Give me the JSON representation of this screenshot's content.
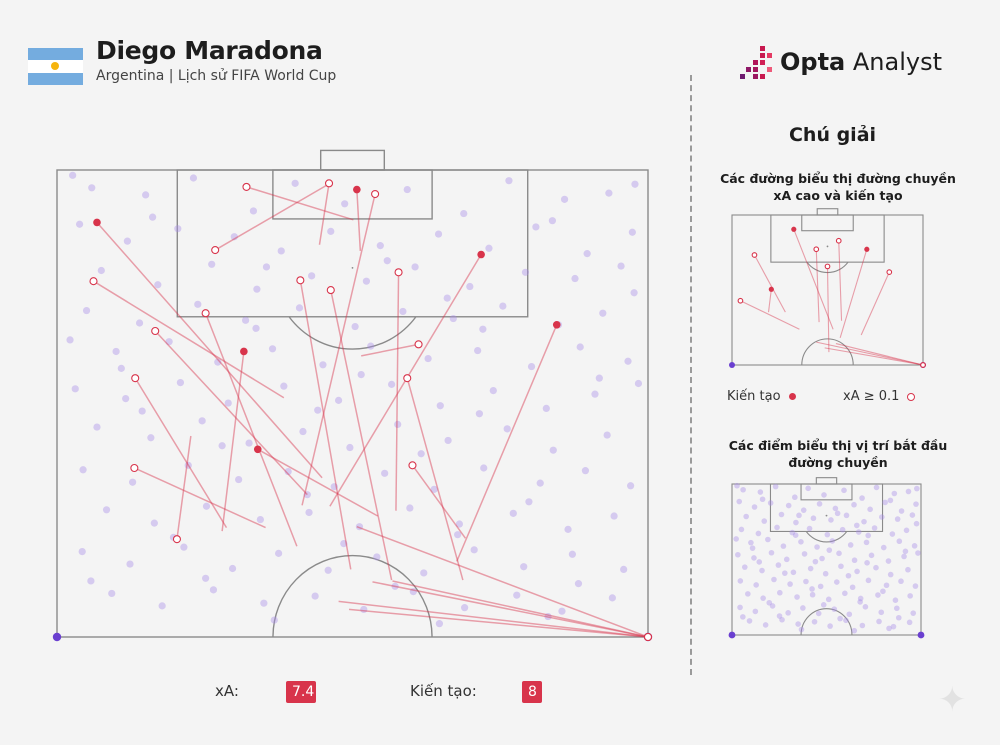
{
  "header": {
    "title": "Diego Maradona",
    "subtitle": "Argentina | Lịch sử FIFA World Cup"
  },
  "logo": {
    "brand_bold": "Opta",
    "brand_light": " Analyst"
  },
  "legend": {
    "title": "Chú giải",
    "lines_caption": "Các đường biểu thị đường chuyền xA cao và kiến tạo",
    "assist_label": "Kiến tạo",
    "xa_label": "xA ≥ 0.1",
    "dots_caption": "Các điểm biểu thị vị trí bắt đầu đường chuyền"
  },
  "stats": {
    "xa_label": "xA:",
    "xa_value": "7.4",
    "assists_label": "Kiến tạo:",
    "assists_value": "8"
  },
  "colors": {
    "assist": "#d8344b",
    "line": "#d8344b",
    "dot": "#a98ee8",
    "corner": "#6a3fd0",
    "pitch": "#8a8a8a",
    "badge": "#d8344b"
  },
  "icons": {
    "flag": "argentina-flag-icon",
    "logo": "opta-logo-icon",
    "sparkle": "sparkle-icon"
  },
  "chart_data": {
    "type": "scatter",
    "title": "Diego Maradona",
    "pitch": {
      "length_m": 52.5,
      "width_m": 68,
      "attacking_end": "top"
    },
    "pass_starts": [
      [
        4.0,
        2.0
      ],
      [
        10.2,
        2.8
      ],
      [
        15.7,
        0.9
      ],
      [
        22.6,
        4.6
      ],
      [
        27.4,
        1.5
      ],
      [
        33.1,
        3.8
      ],
      [
        40.3,
        2.2
      ],
      [
        46.8,
        4.9
      ],
      [
        52.0,
        1.2
      ],
      [
        58.4,
        3.3
      ],
      [
        63.5,
        2.6
      ],
      [
        2.6,
        6.1
      ],
      [
        8.1,
        8.0
      ],
      [
        13.9,
        6.6
      ],
      [
        20.4,
        7.5
      ],
      [
        25.8,
        9.1
      ],
      [
        31.5,
        6.9
      ],
      [
        37.2,
        8.5
      ],
      [
        43.9,
        7.2
      ],
      [
        49.7,
        8.8
      ],
      [
        55.1,
        6.4
      ],
      [
        61.0,
        9.4
      ],
      [
        66.2,
        7.0
      ],
      [
        5.1,
        11.3
      ],
      [
        11.6,
        12.9
      ],
      [
        17.8,
        10.6
      ],
      [
        23.0,
        13.4
      ],
      [
        29.3,
        11.9
      ],
      [
        35.6,
        12.5
      ],
      [
        41.2,
        10.9
      ],
      [
        47.5,
        13.1
      ],
      [
        53.9,
        11.5
      ],
      [
        59.6,
        12.2
      ],
      [
        64.9,
        10.8
      ],
      [
        3.4,
        15.8
      ],
      [
        9.5,
        17.2
      ],
      [
        16.2,
        15.1
      ],
      [
        21.7,
        16.9
      ],
      [
        27.9,
        15.5
      ],
      [
        34.3,
        17.6
      ],
      [
        39.8,
        15.9
      ],
      [
        45.6,
        16.7
      ],
      [
        51.3,
        15.3
      ],
      [
        57.7,
        17.4
      ],
      [
        62.8,
        16.1
      ],
      [
        6.8,
        20.4
      ],
      [
        12.9,
        19.3
      ],
      [
        18.5,
        21.6
      ],
      [
        24.8,
        20.1
      ],
      [
        30.6,
        21.9
      ],
      [
        36.1,
        19.8
      ],
      [
        42.7,
        21.2
      ],
      [
        48.4,
        20.3
      ],
      [
        54.6,
        22.1
      ],
      [
        60.2,
        19.9
      ],
      [
        65.7,
        21.5
      ],
      [
        2.1,
        24.6
      ],
      [
        7.9,
        25.7
      ],
      [
        14.2,
        23.9
      ],
      [
        19.7,
        26.2
      ],
      [
        26.1,
        24.3
      ],
      [
        32.4,
        25.9
      ],
      [
        38.5,
        24.1
      ],
      [
        44.1,
        26.5
      ],
      [
        50.2,
        24.8
      ],
      [
        56.3,
        26.8
      ],
      [
        61.9,
        25.2
      ],
      [
        66.9,
        24.0
      ],
      [
        4.6,
        28.9
      ],
      [
        10.8,
        30.1
      ],
      [
        16.7,
        28.2
      ],
      [
        22.1,
        30.7
      ],
      [
        28.3,
        29.4
      ],
      [
        33.7,
        31.2
      ],
      [
        39.2,
        28.6
      ],
      [
        45.0,
        30.4
      ],
      [
        51.8,
        29.1
      ],
      [
        57.1,
        31.5
      ],
      [
        63.3,
        29.8
      ],
      [
        3.0,
        33.7
      ],
      [
        8.7,
        35.1
      ],
      [
        15.1,
        33.2
      ],
      [
        20.9,
        34.8
      ],
      [
        26.6,
        33.9
      ],
      [
        31.9,
        35.6
      ],
      [
        37.7,
        34.1
      ],
      [
        43.4,
        35.9
      ],
      [
        49.1,
        33.5
      ],
      [
        55.6,
        35.2
      ],
      [
        60.8,
        33.8
      ],
      [
        66.0,
        35.5
      ],
      [
        5.7,
        38.2
      ],
      [
        11.2,
        39.7
      ],
      [
        17.2,
        37.8
      ],
      [
        23.4,
        39.3
      ],
      [
        29.0,
        38.5
      ],
      [
        34.8,
        40.1
      ],
      [
        40.6,
        38.0
      ],
      [
        46.3,
        39.8
      ],
      [
        52.5,
        38.6
      ],
      [
        58.8,
        40.4
      ],
      [
        64.1,
        38.9
      ],
      [
        2.9,
        42.9
      ],
      [
        8.4,
        44.3
      ],
      [
        14.6,
        42.4
      ],
      [
        20.2,
        44.8
      ],
      [
        25.5,
        43.1
      ],
      [
        31.2,
        45.0
      ],
      [
        36.8,
        43.5
      ],
      [
        42.2,
        45.3
      ],
      [
        48.0,
        42.7
      ],
      [
        53.7,
        44.6
      ],
      [
        59.3,
        43.2
      ],
      [
        65.2,
        44.9
      ],
      [
        6.3,
        47.6
      ],
      [
        12.1,
        49.0
      ],
      [
        18.0,
        47.2
      ],
      [
        23.8,
        48.7
      ],
      [
        29.7,
        47.9
      ],
      [
        35.3,
        49.4
      ],
      [
        41.0,
        47.4
      ],
      [
        46.9,
        49.2
      ],
      [
        52.9,
        47.8
      ],
      [
        58.1,
        49.6
      ],
      [
        63.9,
        48.1
      ],
      [
        1.8,
        0.6
      ],
      [
        66.5,
        1.6
      ],
      [
        11.0,
        5.3
      ],
      [
        57.0,
        5.7
      ],
      [
        38.0,
        10.2
      ],
      [
        24.1,
        10.9
      ],
      [
        49.0,
        17.9
      ],
      [
        7.4,
        22.3
      ],
      [
        35.0,
        23.0
      ],
      [
        62.4,
        23.4
      ],
      [
        19.0,
        31.0
      ],
      [
        41.9,
        31.9
      ],
      [
        28.8,
        36.5
      ],
      [
        54.3,
        37.3
      ],
      [
        13.4,
        41.3
      ],
      [
        46.1,
        41.0
      ],
      [
        33.0,
        42.0
      ],
      [
        3.9,
        46.2
      ],
      [
        60.0,
        46.5
      ],
      [
        25.0,
        50.6
      ],
      [
        44.0,
        51.0
      ],
      [
        66.4,
        13.8
      ],
      [
        1.5,
        19.1
      ],
      [
        30.0,
        27.0
      ],
      [
        9.8,
        27.1
      ],
      [
        48.6,
        27.4
      ],
      [
        17.1,
        45.9
      ],
      [
        56.5,
        50.2
      ],
      [
        38.9,
        46.8
      ],
      [
        22.9,
        17.8
      ],
      [
        44.9,
        14.4
      ]
    ],
    "corners": [
      [
        0,
        52.5
      ],
      [
        68,
        52.5
      ]
    ],
    "passes": [
      {
        "start": [
          18.2,
          9.0
        ],
        "end": [
          31.4,
          1.5
        ],
        "type": "xa"
      },
      {
        "start": [
          21.8,
          1.9
        ],
        "end": [
          34.1,
          5.6
        ],
        "type": "xa"
      },
      {
        "start": [
          21.5,
          20.4
        ],
        "end": [
          19.0,
          40.6
        ],
        "type": "assist"
      },
      {
        "start": [
          13.8,
          41.5
        ],
        "end": [
          15.4,
          29.9
        ],
        "type": "xa"
      },
      {
        "start": [
          36.6,
          2.7
        ],
        "end": [
          28.2,
          37.7
        ],
        "type": "xa"
      },
      {
        "start": [
          9.0,
          23.4
        ],
        "end": [
          19.5,
          40.2
        ],
        "type": "xa"
      },
      {
        "start": [
          4.2,
          12.5
        ],
        "end": [
          26.1,
          25.6
        ],
        "type": "xa"
      },
      {
        "start": [
          4.6,
          5.9
        ],
        "end": [
          30.5,
          34.6
        ],
        "type": "assist"
      },
      {
        "start": [
          11.3,
          18.1
        ],
        "end": [
          28.8,
          36.5
        ],
        "type": "xa"
      },
      {
        "start": [
          8.9,
          33.5
        ],
        "end": [
          24.0,
          40.2
        ],
        "type": "xa"
      },
      {
        "start": [
          48.8,
          9.5
        ],
        "end": [
          31.4,
          37.8
        ],
        "type": "assist"
      },
      {
        "start": [
          17.1,
          16.1
        ],
        "end": [
          27.6,
          42.3
        ],
        "type": "xa"
      },
      {
        "start": [
          23.1,
          31.4
        ],
        "end": [
          36.9,
          38.9
        ],
        "type": "assist"
      },
      {
        "start": [
          28.0,
          12.4
        ],
        "end": [
          33.8,
          44.9
        ],
        "type": "xa"
      },
      {
        "start": [
          31.5,
          13.5
        ],
        "end": [
          38.5,
          46.1
        ],
        "type": "xa"
      },
      {
        "start": [
          39.3,
          11.5
        ],
        "end": [
          39.0,
          38.3
        ],
        "type": "xa"
      },
      {
        "start": [
          40.3,
          23.4
        ],
        "end": [
          46.7,
          46.1
        ],
        "type": "xa"
      },
      {
        "start": [
          40.9,
          33.2
        ],
        "end": [
          47.0,
          41.4
        ],
        "type": "xa"
      },
      {
        "start": [
          57.5,
          17.4
        ],
        "end": [
          46.0,
          44.0
        ],
        "type": "assist"
      },
      {
        "start": [
          68,
          52.5
        ],
        "end": [
          33.6,
          49.4
        ],
        "type": "xa"
      },
      {
        "start": [
          68,
          52.5
        ],
        "end": [
          32.4,
          48.5
        ],
        "type": "assist"
      },
      {
        "start": [
          68,
          52.5
        ],
        "end": [
          36.3,
          46.3
        ],
        "type": "assist"
      },
      {
        "start": [
          68,
          52.5
        ],
        "end": [
          38.6,
          46.2
        ],
        "type": "xa"
      },
      {
        "start": [
          68,
          52.5
        ],
        "end": [
          34.5,
          40.1
        ],
        "type": "xa"
      },
      {
        "start": [
          41.6,
          19.6
        ],
        "end": [
          35.0,
          20.9
        ],
        "type": "xa"
      },
      {
        "start": [
          31.3,
          1.5
        ],
        "end": [
          30.2,
          8.4
        ],
        "type": "xa"
      },
      {
        "start": [
          34.5,
          2.2
        ],
        "end": [
          34.9,
          9.1
        ],
        "type": "assist"
      }
    ],
    "mini_passes": [
      {
        "start": [
          8.0,
          14.0
        ],
        "end": [
          19.0,
          34.0
        ],
        "type": "xa"
      },
      {
        "start": [
          14.0,
          26.0
        ],
        "end": [
          13.0,
          34.0
        ],
        "type": "assist"
      },
      {
        "start": [
          22.0,
          5.0
        ],
        "end": [
          36.0,
          40.0
        ],
        "type": "assist"
      },
      {
        "start": [
          30.0,
          12.0
        ],
        "end": [
          31.0,
          37.5
        ],
        "type": "xa"
      },
      {
        "start": [
          38.0,
          9.0
        ],
        "end": [
          39.0,
          37.0
        ],
        "type": "xa"
      },
      {
        "start": [
          48.0,
          12.0
        ],
        "end": [
          38.5,
          43.0
        ],
        "type": "assist"
      },
      {
        "start": [
          56.0,
          20.0
        ],
        "end": [
          46.0,
          42.0
        ],
        "type": "xa"
      },
      {
        "start": [
          68,
          52.5
        ],
        "end": [
          33.0,
          46.5
        ],
        "type": "assist"
      },
      {
        "start": [
          68,
          52.5
        ],
        "end": [
          37.0,
          45.0
        ],
        "type": "xa"
      },
      {
        "start": [
          68,
          52.5
        ],
        "end": [
          30.0,
          44.5
        ],
        "type": "xa"
      },
      {
        "start": [
          3.0,
          30.0
        ],
        "end": [
          24.0,
          40.0
        ],
        "type": "xa"
      },
      {
        "start": [
          34.0,
          18.0
        ],
        "end": [
          34.5,
          48.0
        ],
        "type": "xa"
      }
    ]
  }
}
